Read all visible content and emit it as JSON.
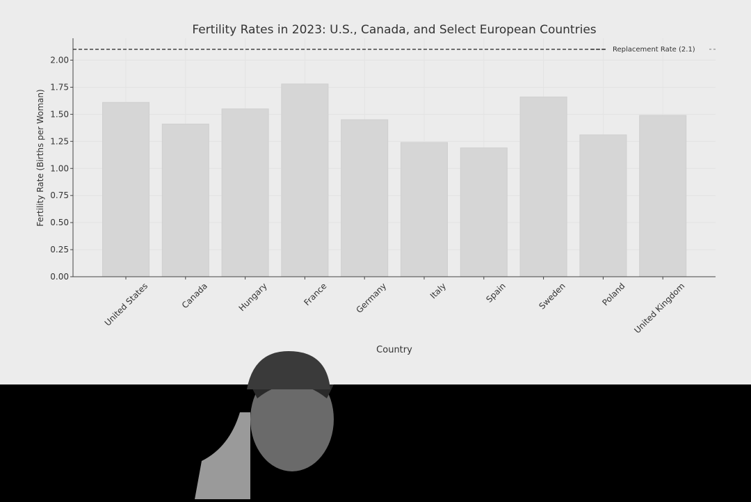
{
  "chart_data": {
    "type": "bar",
    "title": "Fertility Rates in 2023: U.S., Canada, and Select European Countries",
    "xlabel": "Country",
    "ylabel": "Fertility Rate (Births per Woman)",
    "categories": [
      "United States",
      "Canada",
      "Hungary",
      "France",
      "Germany",
      "Italy",
      "Spain",
      "Sweden",
      "Poland",
      "United Kingdom"
    ],
    "values": [
      1.61,
      1.41,
      1.55,
      1.78,
      1.45,
      1.24,
      1.19,
      1.66,
      1.31,
      1.49
    ],
    "ylim": [
      0,
      2.2
    ],
    "yticks": [
      "0.00",
      "0.25",
      "0.50",
      "0.75",
      "1.00",
      "1.25",
      "1.50",
      "1.75",
      "2.00"
    ],
    "grid": true,
    "reference_line": {
      "value": 2.1,
      "label": "Replacement Rate (2.1)",
      "style": "dashed"
    },
    "legend_position": "top-right",
    "bar_color": "#d6d6d6",
    "background": "#ececec"
  }
}
